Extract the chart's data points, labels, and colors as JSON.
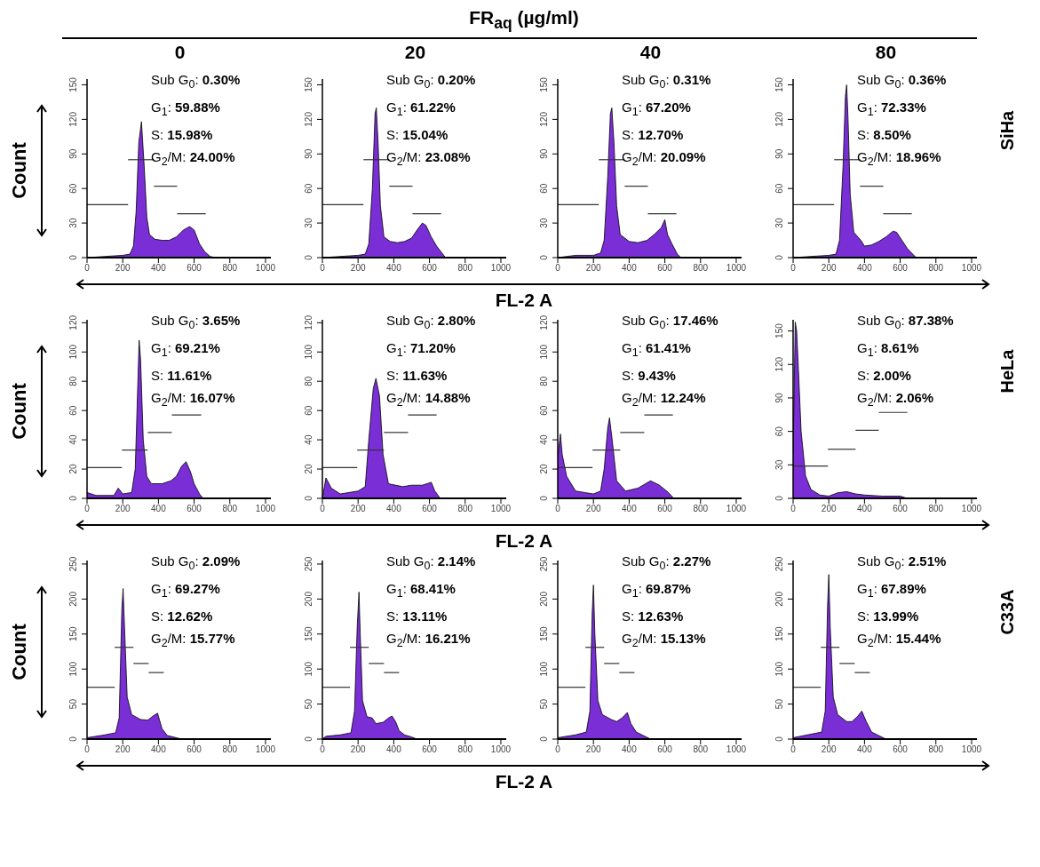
{
  "chart_data": [
    {
      "type": "other",
      "title": "FR$_{aq}$ (µg/ml)"
    },
    {
      "type": "area",
      "title": "0",
      "ylabel": "Count",
      "xlim": [
        0,
        1030
      ],
      "xticks": [
        0,
        200,
        400,
        600,
        800,
        1000
      ],
      "ylim": [
        0,
        155
      ],
      "yticks": [
        0,
        30,
        60,
        90,
        120,
        150
      ],
      "marker": "none",
      "annotations": [
        "Sub G$_{0}$: 0.30%",
        "G$_{1}$: 59.88%",
        "S: 15.98%",
        "G$_{2}$/M: 24.00%"
      ],
      "series": [
        {
          "type": "area",
          "color": "#7a2ed6",
          "x": [
            0,
            100,
            200,
            240,
            260,
            275,
            290,
            305,
            320,
            335,
            350,
            380,
            420,
            460,
            500,
            540,
            575,
            600,
            630,
            660,
            690,
            720,
            1000
          ],
          "values": [
            0,
            1,
            2,
            3,
            10,
            40,
            100,
            118,
            80,
            35,
            20,
            16,
            15,
            15,
            18,
            24,
            27,
            24,
            12,
            5,
            1,
            0,
            0
          ]
        },
        {
          "type": "line",
          "color": "#333333",
          "x": [
            0,
            230
          ],
          "values": [
            46,
            46
          ]
        },
        {
          "type": "line",
          "color": "#333333",
          "x": [
            230,
            375
          ],
          "values": [
            85,
            85
          ]
        },
        {
          "type": "line",
          "color": "#333333",
          "x": [
            375,
            505
          ],
          "values": [
            62,
            62
          ]
        },
        {
          "type": "line",
          "color": "#333333",
          "x": [
            505,
            665
          ],
          "values": [
            38,
            38
          ]
        }
      ]
    },
    {
      "type": "area",
      "title": "20",
      "xlabel": "FL-2 A",
      "xlim": [
        0,
        1030
      ],
      "xticks": [
        0,
        200,
        400,
        600,
        800,
        1000
      ],
      "ylim": [
        0,
        155
      ],
      "yticks": [
        0,
        30,
        60,
        90,
        120,
        150
      ],
      "marker": "none",
      "annotations": [
        "Sub G$_{0}$: 0.20%",
        "G$_{1}$: 61.22%",
        "S: 15.04%",
        "G$_{2}$/M: 23.08%"
      ],
      "series": [
        {
          "type": "area",
          "color": "#7a2ed6",
          "x": [
            0,
            100,
            200,
            240,
            260,
            280,
            295,
            302,
            312,
            325,
            345,
            380,
            420,
            460,
            500,
            535,
            560,
            580,
            610,
            640,
            670,
            690,
            1000
          ],
          "values": [
            0,
            1,
            2,
            3,
            12,
            60,
            125,
            130,
            100,
            45,
            18,
            14,
            13,
            14,
            17,
            25,
            30,
            28,
            18,
            10,
            4,
            0,
            0
          ]
        },
        {
          "type": "line",
          "color": "#333333",
          "x": [
            0,
            230
          ],
          "values": [
            46,
            46
          ]
        },
        {
          "type": "line",
          "color": "#333333",
          "x": [
            230,
            375
          ],
          "values": [
            85,
            85
          ]
        },
        {
          "type": "line",
          "color": "#333333",
          "x": [
            375,
            505
          ],
          "values": [
            62,
            62
          ]
        },
        {
          "type": "line",
          "color": "#333333",
          "x": [
            505,
            665
          ],
          "values": [
            38,
            38
          ]
        }
      ]
    },
    {
      "type": "area",
      "title": "40",
      "xlim": [
        0,
        1030
      ],
      "xticks": [
        0,
        200,
        400,
        600,
        800,
        1000
      ],
      "ylim": [
        0,
        155
      ],
      "yticks": [
        0,
        30,
        60,
        90,
        120,
        150
      ],
      "marker": "none",
      "annotations": [
        "Sub G$_{0}$: 0.31%",
        "G$_{1}$: 67.20%",
        "S: 12.70%",
        "G$_{2}$/M: 20.09%"
      ],
      "series": [
        {
          "type": "area",
          "color": "#7a2ed6",
          "x": [
            0,
            100,
            200,
            240,
            260,
            280,
            295,
            303,
            315,
            330,
            350,
            400,
            450,
            500,
            540,
            580,
            600,
            615,
            640,
            670,
            690,
            1000
          ],
          "values": [
            0,
            2,
            2,
            4,
            15,
            70,
            125,
            130,
            100,
            45,
            20,
            14,
            13,
            15,
            20,
            26,
            33,
            20,
            12,
            3,
            0,
            0
          ]
        },
        {
          "type": "line",
          "color": "#333333",
          "x": [
            0,
            230
          ],
          "values": [
            46,
            46
          ]
        },
        {
          "type": "line",
          "color": "#333333",
          "x": [
            230,
            375
          ],
          "values": [
            85,
            85
          ]
        },
        {
          "type": "line",
          "color": "#333333",
          "x": [
            375,
            505
          ],
          "values": [
            62,
            62
          ]
        },
        {
          "type": "line",
          "color": "#333333",
          "x": [
            505,
            665
          ],
          "values": [
            38,
            38
          ]
        }
      ]
    },
    {
      "type": "area",
      "title": "80",
      "y2label": "SiHa",
      "xlim": [
        0,
        1030
      ],
      "xticks": [
        0,
        200,
        400,
        600,
        800,
        1000
      ],
      "ylim": [
        0,
        155
      ],
      "yticks": [
        0,
        30,
        60,
        90,
        120,
        150
      ],
      "marker": "none",
      "annotations": [
        "Sub G$_{0}$: 0.36%",
        "G$_{1}$: 72.33%",
        "S: 8.50%",
        "G$_{2}$/M: 18.96%"
      ],
      "series": [
        {
          "type": "area",
          "color": "#7a2ed6",
          "x": [
            0,
            100,
            200,
            240,
            260,
            280,
            293,
            300,
            308,
            320,
            340,
            380,
            400,
            440,
            480,
            520,
            560,
            580,
            610,
            640,
            670,
            690,
            1000
          ],
          "values": [
            0,
            1,
            2,
            3,
            15,
            80,
            140,
            150,
            120,
            55,
            22,
            15,
            10,
            11,
            14,
            18,
            23,
            22,
            15,
            8,
            3,
            0,
            0
          ]
        },
        {
          "type": "line",
          "color": "#333333",
          "x": [
            0,
            230
          ],
          "values": [
            46,
            46
          ]
        },
        {
          "type": "line",
          "color": "#333333",
          "x": [
            230,
            375
          ],
          "values": [
            85,
            85
          ]
        },
        {
          "type": "line",
          "color": "#333333",
          "x": [
            375,
            505
          ],
          "values": [
            62,
            62
          ]
        },
        {
          "type": "line",
          "color": "#333333",
          "x": [
            505,
            665
          ],
          "values": [
            38,
            38
          ]
        }
      ]
    },
    {
      "type": "area",
      "ylabel": "Count",
      "xlim": [
        0,
        1030
      ],
      "xticks": [
        0,
        200,
        400,
        600,
        800,
        1000
      ],
      "ylim": [
        0,
        122
      ],
      "yticks": [
        0,
        20,
        40,
        60,
        80,
        100,
        120
      ],
      "marker": "none",
      "annotations": [
        "Sub G$_{0}$: 3.65%",
        "G$_{1}$: 69.21%",
        "S: 11.61%",
        "G$_{2}$/M: 16.07%"
      ],
      "series": [
        {
          "type": "area",
          "color": "#7a2ed6",
          "x": [
            0,
            50,
            150,
            175,
            200,
            250,
            270,
            285,
            292,
            300,
            315,
            335,
            360,
            420,
            470,
            500,
            530,
            555,
            580,
            600,
            630,
            650,
            1000
          ],
          "values": [
            4,
            2,
            2,
            7,
            3,
            4,
            20,
            80,
            108,
            95,
            40,
            15,
            10,
            10,
            12,
            15,
            22,
            25,
            18,
            10,
            3,
            0,
            0
          ]
        },
        {
          "type": "line",
          "color": "#333333",
          "x": [
            0,
            195
          ],
          "values": [
            21,
            21
          ]
        },
        {
          "type": "line",
          "color": "#333333",
          "x": [
            195,
            340
          ],
          "values": [
            33,
            33
          ]
        },
        {
          "type": "line",
          "color": "#333333",
          "x": [
            340,
            475
          ],
          "values": [
            45,
            45
          ]
        },
        {
          "type": "line",
          "color": "#333333",
          "x": [
            475,
            640
          ],
          "values": [
            57,
            57
          ]
        }
      ]
    },
    {
      "type": "area",
      "xlabel": "FL-2 A",
      "xlim": [
        0,
        1030
      ],
      "xticks": [
        0,
        200,
        400,
        600,
        800,
        1000
      ],
      "ylim": [
        0,
        122
      ],
      "yticks": [
        0,
        20,
        40,
        60,
        80,
        100,
        120
      ],
      "marker": "none",
      "annotations": [
        "Sub G$_{0}$: 2.80%",
        "G$_{1}$: 71.20%",
        "S: 11.63%",
        "G$_{2}$/M: 14.88%"
      ],
      "series": [
        {
          "type": "area",
          "color": "#7a2ed6",
          "x": [
            0,
            20,
            50,
            100,
            200,
            240,
            260,
            285,
            300,
            320,
            340,
            370,
            450,
            500,
            560,
            610,
            630,
            660,
            1000
          ],
          "values": [
            0,
            14,
            7,
            3,
            5,
            8,
            40,
            75,
            82,
            70,
            30,
            10,
            8,
            9,
            9,
            11,
            5,
            0,
            0
          ]
        },
        {
          "type": "line",
          "color": "#333333",
          "x": [
            0,
            195
          ],
          "values": [
            21,
            21
          ]
        },
        {
          "type": "line",
          "color": "#333333",
          "x": [
            195,
            345
          ],
          "values": [
            33,
            33
          ]
        },
        {
          "type": "line",
          "color": "#333333",
          "x": [
            345,
            480
          ],
          "values": [
            45,
            45
          ]
        },
        {
          "type": "line",
          "color": "#333333",
          "x": [
            480,
            640
          ],
          "values": [
            57,
            57
          ]
        }
      ]
    },
    {
      "type": "area",
      "xlim": [
        0,
        1030
      ],
      "xticks": [
        0,
        200,
        400,
        600,
        800,
        1000
      ],
      "ylim": [
        0,
        122
      ],
      "yticks": [
        0,
        20,
        40,
        60,
        80,
        100,
        120
      ],
      "marker": "none",
      "annotations": [
        "Sub G$_{0}$: 17.46%",
        "G$_{1}$: 61.41%",
        "S: 9.43%",
        "G$_{2}$/M: 12.24%"
      ],
      "series": [
        {
          "type": "area",
          "color": "#7a2ed6",
          "x": [
            0,
            15,
            25,
            50,
            100,
            150,
            200,
            240,
            260,
            280,
            290,
            305,
            330,
            380,
            450,
            520,
            570,
            620,
            650,
            1000
          ],
          "values": [
            28,
            44,
            30,
            15,
            5,
            4,
            3,
            5,
            20,
            48,
            55,
            40,
            12,
            5,
            7,
            12,
            9,
            4,
            0,
            0
          ]
        },
        {
          "type": "line",
          "color": "#333333",
          "x": [
            0,
            195
          ],
          "values": [
            21,
            21
          ]
        },
        {
          "type": "line",
          "color": "#333333",
          "x": [
            195,
            350
          ],
          "values": [
            33,
            33
          ]
        },
        {
          "type": "line",
          "color": "#333333",
          "x": [
            350,
            485
          ],
          "values": [
            45,
            45
          ]
        },
        {
          "type": "line",
          "color": "#333333",
          "x": [
            485,
            645
          ],
          "values": [
            57,
            57
          ]
        }
      ]
    },
    {
      "type": "area",
      "y2label": "HeLa",
      "xlim": [
        0,
        1030
      ],
      "xticks": [
        0,
        200,
        400,
        600,
        800,
        1000
      ],
      "ylim": [
        0,
        160
      ],
      "yticks": [
        0,
        30,
        60,
        90,
        120,
        150
      ],
      "marker": "none",
      "annotations": [
        "Sub G$_{0}$: 87.38%",
        "G$_{1}$: 8.61%",
        "S: 2.00%",
        "G$_{2}$/M: 2.06%"
      ],
      "series": [
        {
          "type": "area",
          "color": "#7a2ed6",
          "x": [
            0,
            12,
            20,
            30,
            45,
            70,
            100,
            150,
            200,
            250,
            300,
            350,
            400,
            500,
            600,
            640,
            1000
          ],
          "values": [
            40,
            158,
            150,
            115,
            60,
            20,
            8,
            3,
            2,
            5,
            6,
            4,
            3,
            2,
            2,
            0,
            0
          ]
        },
        {
          "type": "line",
          "color": "#333333",
          "x": [
            0,
            195
          ],
          "values": [
            29,
            29
          ]
        },
        {
          "type": "line",
          "color": "#333333",
          "x": [
            195,
            350
          ],
          "values": [
            44,
            44
          ]
        },
        {
          "type": "line",
          "color": "#333333",
          "x": [
            350,
            480
          ],
          "values": [
            61,
            61
          ]
        },
        {
          "type": "line",
          "color": "#333333",
          "x": [
            480,
            640
          ],
          "values": [
            77,
            77
          ]
        }
      ]
    },
    {
      "type": "area",
      "ylabel": "Count",
      "xlim": [
        0,
        1030
      ],
      "xticks": [
        0,
        200,
        400,
        600,
        800,
        1000
      ],
      "ylim": [
        0,
        255
      ],
      "yticks": [
        0,
        50,
        100,
        150,
        200,
        250
      ],
      "marker": "none",
      "annotations": [
        "Sub G$_{0}$: 2.09%",
        "G$_{1}$: 69.27%",
        "S: 12.62%",
        "G$_{2}$/M: 15.77%"
      ],
      "series": [
        {
          "type": "area",
          "color": "#7a2ed6",
          "x": [
            0,
            100,
            160,
            180,
            195,
            202,
            210,
            225,
            250,
            300,
            340,
            370,
            395,
            420,
            450,
            500,
            530,
            1000
          ],
          "values": [
            2,
            6,
            9,
            30,
            185,
            215,
            160,
            60,
            35,
            28,
            27,
            33,
            37,
            15,
            5,
            2,
            0,
            0
          ]
        },
        {
          "type": "line",
          "color": "#333333",
          "x": [
            0,
            155
          ],
          "values": [
            74,
            74
          ]
        },
        {
          "type": "line",
          "color": "#333333",
          "x": [
            155,
            260
          ],
          "values": [
            131,
            131
          ]
        },
        {
          "type": "line",
          "color": "#333333",
          "x": [
            260,
            345
          ],
          "values": [
            108,
            108
          ]
        },
        {
          "type": "line",
          "color": "#333333",
          "x": [
            345,
            430
          ],
          "values": [
            95,
            95
          ]
        }
      ]
    },
    {
      "type": "area",
      "xlabel": "FL-2 A",
      "xlim": [
        0,
        1030
      ],
      "xticks": [
        0,
        200,
        400,
        600,
        800,
        1000
      ],
      "ylim": [
        0,
        255
      ],
      "yticks": [
        0,
        50,
        100,
        150,
        200,
        250
      ],
      "marker": "none",
      "annotations": [
        "Sub G$_{0}$: 2.14%",
        "G$_{1}$: 68.41%",
        "S: 13.11%",
        "G$_{2}$/M: 16.21%"
      ],
      "series": [
        {
          "type": "area",
          "color": "#7a2ed6",
          "x": [
            0,
            20,
            100,
            160,
            180,
            195,
            205,
            212,
            225,
            250,
            280,
            300,
            340,
            370,
            390,
            410,
            430,
            460,
            500,
            530,
            1000
          ],
          "values": [
            0,
            4,
            6,
            9,
            40,
            160,
            210,
            150,
            55,
            32,
            30,
            22,
            24,
            30,
            33,
            25,
            12,
            6,
            3,
            0,
            0
          ]
        },
        {
          "type": "line",
          "color": "#333333",
          "x": [
            0,
            155
          ],
          "values": [
            74,
            74
          ]
        },
        {
          "type": "line",
          "color": "#333333",
          "x": [
            155,
            260
          ],
          "values": [
            131,
            131
          ]
        },
        {
          "type": "line",
          "color": "#333333",
          "x": [
            260,
            345
          ],
          "values": [
            108,
            108
          ]
        },
        {
          "type": "line",
          "color": "#333333",
          "x": [
            345,
            430
          ],
          "values": [
            95,
            95
          ]
        }
      ]
    },
    {
      "type": "area",
      "xlim": [
        0,
        1030
      ],
      "xticks": [
        0,
        200,
        400,
        600,
        800,
        1000
      ],
      "ylim": [
        0,
        255
      ],
      "yticks": [
        0,
        50,
        100,
        150,
        200,
        250
      ],
      "marker": "none",
      "annotations": [
        "Sub G$_{0}$: 2.27%",
        "G$_{1}$: 69.87%",
        "S: 12.63%",
        "G$_{2}$/M: 15.13%"
      ],
      "series": [
        {
          "type": "area",
          "color": "#7a2ed6",
          "x": [
            0,
            100,
            160,
            180,
            193,
            200,
            208,
            225,
            250,
            300,
            330,
            360,
            390,
            410,
            440,
            480,
            520,
            1000
          ],
          "values": [
            2,
            6,
            10,
            40,
            180,
            220,
            150,
            55,
            35,
            28,
            25,
            30,
            38,
            22,
            10,
            5,
            0,
            0
          ]
        },
        {
          "type": "line",
          "color": "#333333",
          "x": [
            0,
            155
          ],
          "values": [
            74,
            74
          ]
        },
        {
          "type": "line",
          "color": "#333333",
          "x": [
            155,
            260
          ],
          "values": [
            131,
            131
          ]
        },
        {
          "type": "line",
          "color": "#333333",
          "x": [
            260,
            345
          ],
          "values": [
            108,
            108
          ]
        },
        {
          "type": "line",
          "color": "#333333",
          "x": [
            345,
            430
          ],
          "values": [
            95,
            95
          ]
        }
      ]
    },
    {
      "type": "area",
      "y2label": "C33A",
      "xlim": [
        0,
        1030
      ],
      "xticks": [
        0,
        200,
        400,
        600,
        800,
        1000
      ],
      "ylim": [
        0,
        255
      ],
      "yticks": [
        0,
        50,
        100,
        150,
        200,
        250
      ],
      "marker": "none",
      "annotations": [
        "Sub G$_{0}$: 2.51%",
        "G$_{1}$: 67.89%",
        "S: 13.99%",
        "G$_{2}$/M: 15.44%"
      ],
      "series": [
        {
          "type": "area",
          "color": "#7a2ed6",
          "x": [
            0,
            100,
            160,
            180,
            193,
            200,
            208,
            225,
            250,
            300,
            330,
            360,
            385,
            410,
            440,
            480,
            520,
            1000
          ],
          "values": [
            2,
            7,
            10,
            40,
            190,
            235,
            160,
            60,
            35,
            25,
            25,
            32,
            40,
            25,
            10,
            5,
            0,
            0
          ]
        },
        {
          "type": "line",
          "color": "#333333",
          "x": [
            0,
            155
          ],
          "values": [
            74,
            74
          ]
        },
        {
          "type": "line",
          "color": "#333333",
          "x": [
            155,
            260
          ],
          "values": [
            131,
            131
          ]
        },
        {
          "type": "line",
          "color": "#333333",
          "x": [
            260,
            345
          ],
          "values": [
            108,
            108
          ]
        },
        {
          "type": "line",
          "color": "#333333",
          "x": [
            345,
            430
          ],
          "values": [
            95,
            95
          ]
        }
      ]
    }
  ]
}
